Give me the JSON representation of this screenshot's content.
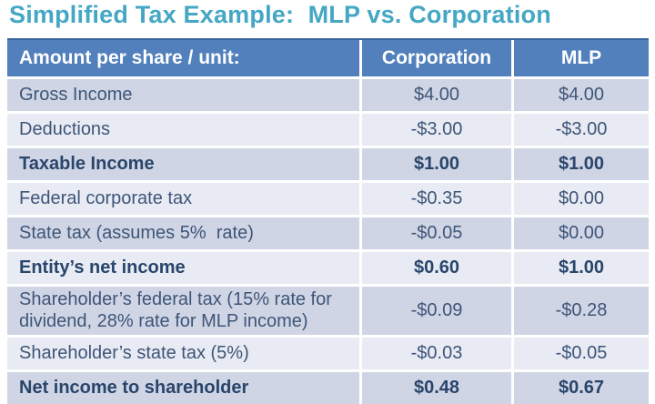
{
  "title": {
    "text": "Simplified Tax Example:  MLP vs. Corporation",
    "color": "#44a7c4"
  },
  "table": {
    "header": {
      "label": "Amount per share / unit:",
      "corporation": "Corporation",
      "mlp": "MLP",
      "background": "#5280bc",
      "text_color": "#ffffff"
    },
    "band_colors": {
      "dark": "#cfd5e4",
      "light": "#e8ebf3"
    },
    "body_text_color": "#3e5578",
    "rows": [
      {
        "label": "Gross Income",
        "corporation": "$4.00",
        "mlp": "$4.00",
        "bold": false,
        "band": "dark"
      },
      {
        "label": "Deductions",
        "corporation": "-$3.00",
        "mlp": "-$3.00",
        "bold": false,
        "band": "light"
      },
      {
        "label": "Taxable Income",
        "corporation": "$1.00",
        "mlp": "$1.00",
        "bold": true,
        "band": "dark"
      },
      {
        "label": "Federal corporate tax",
        "corporation": "-$0.35",
        "mlp": "$0.00",
        "bold": false,
        "band": "light"
      },
      {
        "label": "State tax (assumes 5%  rate)",
        "corporation": "-$0.05",
        "mlp": "$0.00",
        "bold": false,
        "band": "dark"
      },
      {
        "label": "Entity’s net income",
        "corporation": "$0.60",
        "mlp": "$1.00",
        "bold": true,
        "band": "light"
      },
      {
        "label": "Shareholder’s federal tax (15% rate for dividend, 28% rate for MLP income)",
        "corporation": "-$0.09",
        "mlp": "-$0.28",
        "bold": false,
        "band": "dark"
      },
      {
        "label": "Shareholder’s state tax (5%)",
        "corporation": "-$0.03",
        "mlp": "-$0.05",
        "bold": false,
        "band": "light"
      },
      {
        "label": "Net income to shareholder",
        "corporation": "$0.48",
        "mlp": "$0.67",
        "bold": true,
        "band": "dark"
      }
    ]
  }
}
